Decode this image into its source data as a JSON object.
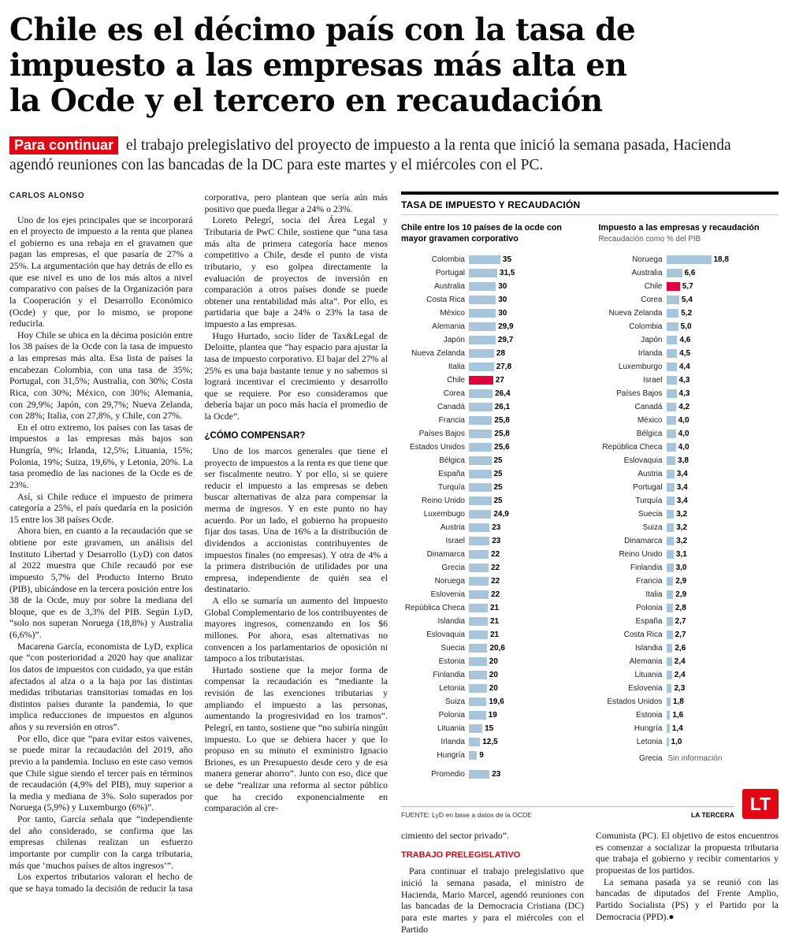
{
  "meta": {
    "accent": "#e30613"
  },
  "headline": "Chile es el décimo país con la tasa de impuesto a las empresas más alta en la Ocde y el tercero en recaudación",
  "subhead": {
    "highlight": "Para continuar",
    "text": "el trabajo prelegislativo del proyecto de impuesto a la renta que inició la semana pasada, Hacienda agendó reuniones con las bancadas de la DC para este martes y el miércoles con el PC."
  },
  "byline": "CARLOS ALONSO",
  "article": {
    "paragraphs": [
      "Uno de los ejes principales que se incorporará en el proyecto de impuesto a la renta que planea el gobierno es una rebaja en el gravamen que pagan las empresas, el que pasaría de 27% a 25%. La argumentación que hay detrás de ello es que ese nivel es uno de los más altos a nivel comparativo con países de la Organización para la Cooperación y el Desarrollo Económico (Ocde) y que, por lo mismo, se propone reducirla.",
      "Hoy Chile se ubica en la décima posición entre los 38 países de la Ocde con la tasa de impuesto a las empresas más alta. Esa lista de países la encabezan Colombia, con una tasa de 35%; Portugal, con 31,5%; Australia, con 30%; Costa Rica, con 30%; México, con 30%; Alemania, con 29,9%; Japón, con 29,7%; Nueva Zelanda, con 28%; Italia, con 27,8%, y Chile, con 27%.",
      "En el otro extremo, los países con las tasas de impuestos a las empresas más bajos son Hungría, 9%; Irlanda, 12,5%; Lituania, 15%; Polonia, 19%; Suiza, 19,6%, y Letonia, 20%. La tasa promedio de las naciones de la Ocde es de 23%.",
      "Así, si Chile reduce el impuesto de primera categoría a 25%, el país quedaría en la posición 15 entre los 38 países Ocde.",
      "Ahora bien, en cuanto a la recaudación que se obtiene por este gravamen, un análisis del Instituto Libertad y Desarrollo (LyD) con datos al 2022 muestra que Chile recaudó por ese impuesto 5,7% del Producto Interno Bruto (PIB), ubicándose en la tercera posición entre los 38 de la Ocde, muy por sobre la mediana del bloque, que es de 3,3% del PIB. Según LyD, “solo nos superan Noruega (18,8%) y Australia (6,6%)”.",
      "Macarena García, economista de LyD, explica que “con posterioridad a 2020 hay que analizar los datos de impuestos con cuidado, ya que están afectados al alza o a la baja por las distintas medidas tributarias transitorias tomadas en los distintos países durante la pandemia, lo que implica reducciones de impuestos en algunos años y su reversión en otros”.",
      "Por ello, dice que “para evitar estos vaivenes, se puede mirar la recaudación del 2019, año previo a la pandemia. Incluso en este caso vemos que Chile sigue siendo el tercer país en términos de recaudación (4,9% del PIB), muy superior a la media y mediana de 3%. Solo superados por Noruega (5,9%) y Luxemburgo (6%)”.",
      "Por tanto, García señala que “independiente del año considerado, se confirma que las empresas chilenas realizan un esfuerzo importante por cumplir con la carga tributaria, más que ‘muchos países de altos ingresos’”.",
      "Los expertos tributarios valoran el hecho de que se haya tomado la decisión de reducir la tasa corporativa, pero plantean que sería aún más positivo que pueda llegar a 24% o 23%.",
      "Loreto Pelegrí, socia del Área Legal y Tributaria de PwC Chile, sostiene que “una tasa más alta de primera categoría hace menos competitivo a Chile, desde el punto de vista tributario, y eso golpea directamente la evaluación de proyectos de inversión en comparación a otros países donde se puede obtener una rentabilidad más alta”. Por ello, es partidaria que baje a 24% o 23% la tasa de impuesto a las empresas.",
      "Hugo Hurtado, socio líder de Tax&Legal de Deloitte, plantea que “hay espacio para ajustar la tasa de impuesto corporativo. El bajar del 27% al 25% es una baja bastante tenue y no sabemos si logrará incentivar el crecimiento y desarrollo que se requiere. Por eso consideramos que debería bajar un poco más hacia el promedio de la Ocde”."
    ],
    "crosshead": "¿CÓMO COMPENSAR?",
    "paragraphs_after": [
      "Uno de los marcos generales que tiene el proyecto de impuestos a la renta es que tiene que ser fiscalmente neutro. Y por ello, si se quiere reducir el impuesto a las empresas se deben buscar alternativas de alza para compensar la merma de ingresos. Y en este punto no hay acuerdo. Por un lado, el gobierno ha propuesto fijar dos tasas. Una de 16% a la distribución de dividendos a accionistas contribuyentes de impuestos finales (no empresas). Y otra de 4% a la primera distribución de utilidades por una empresa, independiente de quién sea el destinatario.",
      "A ello se sumaría un aumento del Impuesto Global Complementario de los contribuyentes de mayores ingresos, comenzando en los $6 millones. Por ahora, esas alternativas no convencen a los parlamentarios de oposición ni tampoco a los tributaristas.",
      "Hurtado sostiene que la mejor forma de compensar la recaudación es “mediante la revisión de las exenciones tributarias y ampliando el impuesto a las personas, aumentando la progresividad en los tramos”. Pelegrí, en tanto, sostiene que “no subiría ningún impuesto. Lo que se debiera hacer y que lo propuso en su minuto el exministro Ignacio Briones, es un Presupuesto desde cero y de esa manera generar ahorro”. Junto con eso, dice que se debe “realizar una reforma al sector público que ha crecido exponencialmente en comparación al cre-"
    ]
  },
  "charts": {
    "kicker": "TASA DE IMPUESTO Y RECAUDACIÓN",
    "source": "FUENTE: LyD en base a datos de la OCDE",
    "credit": "LA TERCERA",
    "logo_text": "LT",
    "bar_color": "#a7c6dc",
    "highlight_color": "#e4003c"
  },
  "chart_data": [
    {
      "type": "bar",
      "orientation": "horizontal",
      "title": "Chile entre los 10 países de la ocde con mayor gravamen corporativo",
      "unit": "%",
      "axis_max": 35,
      "label_format": "auto",
      "highlight": "Chile",
      "categories": [
        "Colombia",
        "Portugal",
        "Australia",
        "Costa Rica",
        "México",
        "Alemania",
        "Japón",
        "Nueva Zelanda",
        "Italia",
        "Chile",
        "Corea",
        "Canadá",
        "Francia",
        "Países Bajos",
        "Estados Unidos",
        "Bélgica",
        "España",
        "Turquía",
        "Reino Unido",
        "Luxembugo",
        "Austria",
        "Israel",
        "Dinamarca",
        "Grecia",
        "Noruega",
        "Eslovenia",
        "República Checa",
        "Islandia",
        "Eslovaquia",
        "Suecia",
        "Estonia",
        "Finlandia",
        "Letonia",
        "Suiza",
        "Polonia",
        "Lituania",
        "Irlanda",
        "Hungría"
      ],
      "values": [
        35,
        31.5,
        30,
        30,
        30,
        29.9,
        29.7,
        28,
        27.8,
        27,
        26.4,
        26.1,
        25.8,
        25.8,
        25.6,
        25,
        25,
        25,
        25,
        24.9,
        23,
        23,
        22,
        22,
        22,
        22,
        21,
        21,
        21,
        20.6,
        20,
        20,
        20,
        19.6,
        19,
        15,
        12.5,
        9
      ],
      "summary_row": {
        "label": "Promedio",
        "value": 23
      }
    },
    {
      "type": "bar",
      "orientation": "horizontal",
      "title": "Impuesto a las empresas y recaudación",
      "subtitle": "Recaudación como % del PIB",
      "unit": "% del PIB",
      "axis_max": 18.8,
      "label_format": "one_decimal",
      "highlight": "Chile",
      "categories": [
        "Noruega",
        "Australia",
        "Chile",
        "Corea",
        "Nueva Zelanda",
        "Colombia",
        "Japón",
        "Irlanda",
        "Luxemburgo",
        "Israel",
        "Países Bajos",
        "Canadá",
        "México",
        "Bélgica",
        "República Checa",
        "Eslovaquia",
        "Austria",
        "Portugal",
        "Turquía",
        "Suecia",
        "Suiza",
        "Dinamarca",
        "Reino Unido",
        "Finlandia",
        "Francia",
        "Italia",
        "Polonia",
        "España",
        "Costa Rica",
        "Islandia",
        "Alemania",
        "Lituania",
        "Eslovenia",
        "Estados Unidos",
        "Estonia",
        "Hungría",
        "Letonia"
      ],
      "values": [
        18.8,
        6.6,
        5.7,
        5.4,
        5.2,
        5.0,
        4.6,
        4.5,
        4.4,
        4.3,
        4.3,
        4.2,
        4.0,
        4.0,
        4.0,
        3.8,
        3.4,
        3.4,
        3.4,
        3.2,
        3.2,
        3.2,
        3.1,
        3.0,
        2.9,
        2.9,
        2.8,
        2.7,
        2.7,
        2.6,
        2.4,
        2.4,
        2.3,
        1.8,
        1.6,
        1.4,
        1.0
      ],
      "no_data_row": {
        "label": "Grecia",
        "note": "Sin información"
      }
    }
  ],
  "bottom": {
    "lead_fragment": "cimiento del sector privado”.",
    "kicker": "TRABAJO PRELEGISLATIVO",
    "col1_paragraph": "Para continuar el trabajo prelegislativo que inició la semana pasada, el ministro de Hacienda, Mario Marcel, agendó reuniones con las bancadas de la Democracia Cristiana (DC) para este martes y para el miércoles con el Partido",
    "col2_paragraphs": [
      "Comunista (PC). El objetivo de estos encuentros es comenzar a socializar la propuesta tributaria que trabaja el gobierno y recibir comentarios y propuestas de los partidos.",
      "La semana pasada ya se reunió con las bancadas de diputados del Frente Amplio, Partido Socialista (PS) y el Partido por la Democracia (PPD).●"
    ]
  }
}
